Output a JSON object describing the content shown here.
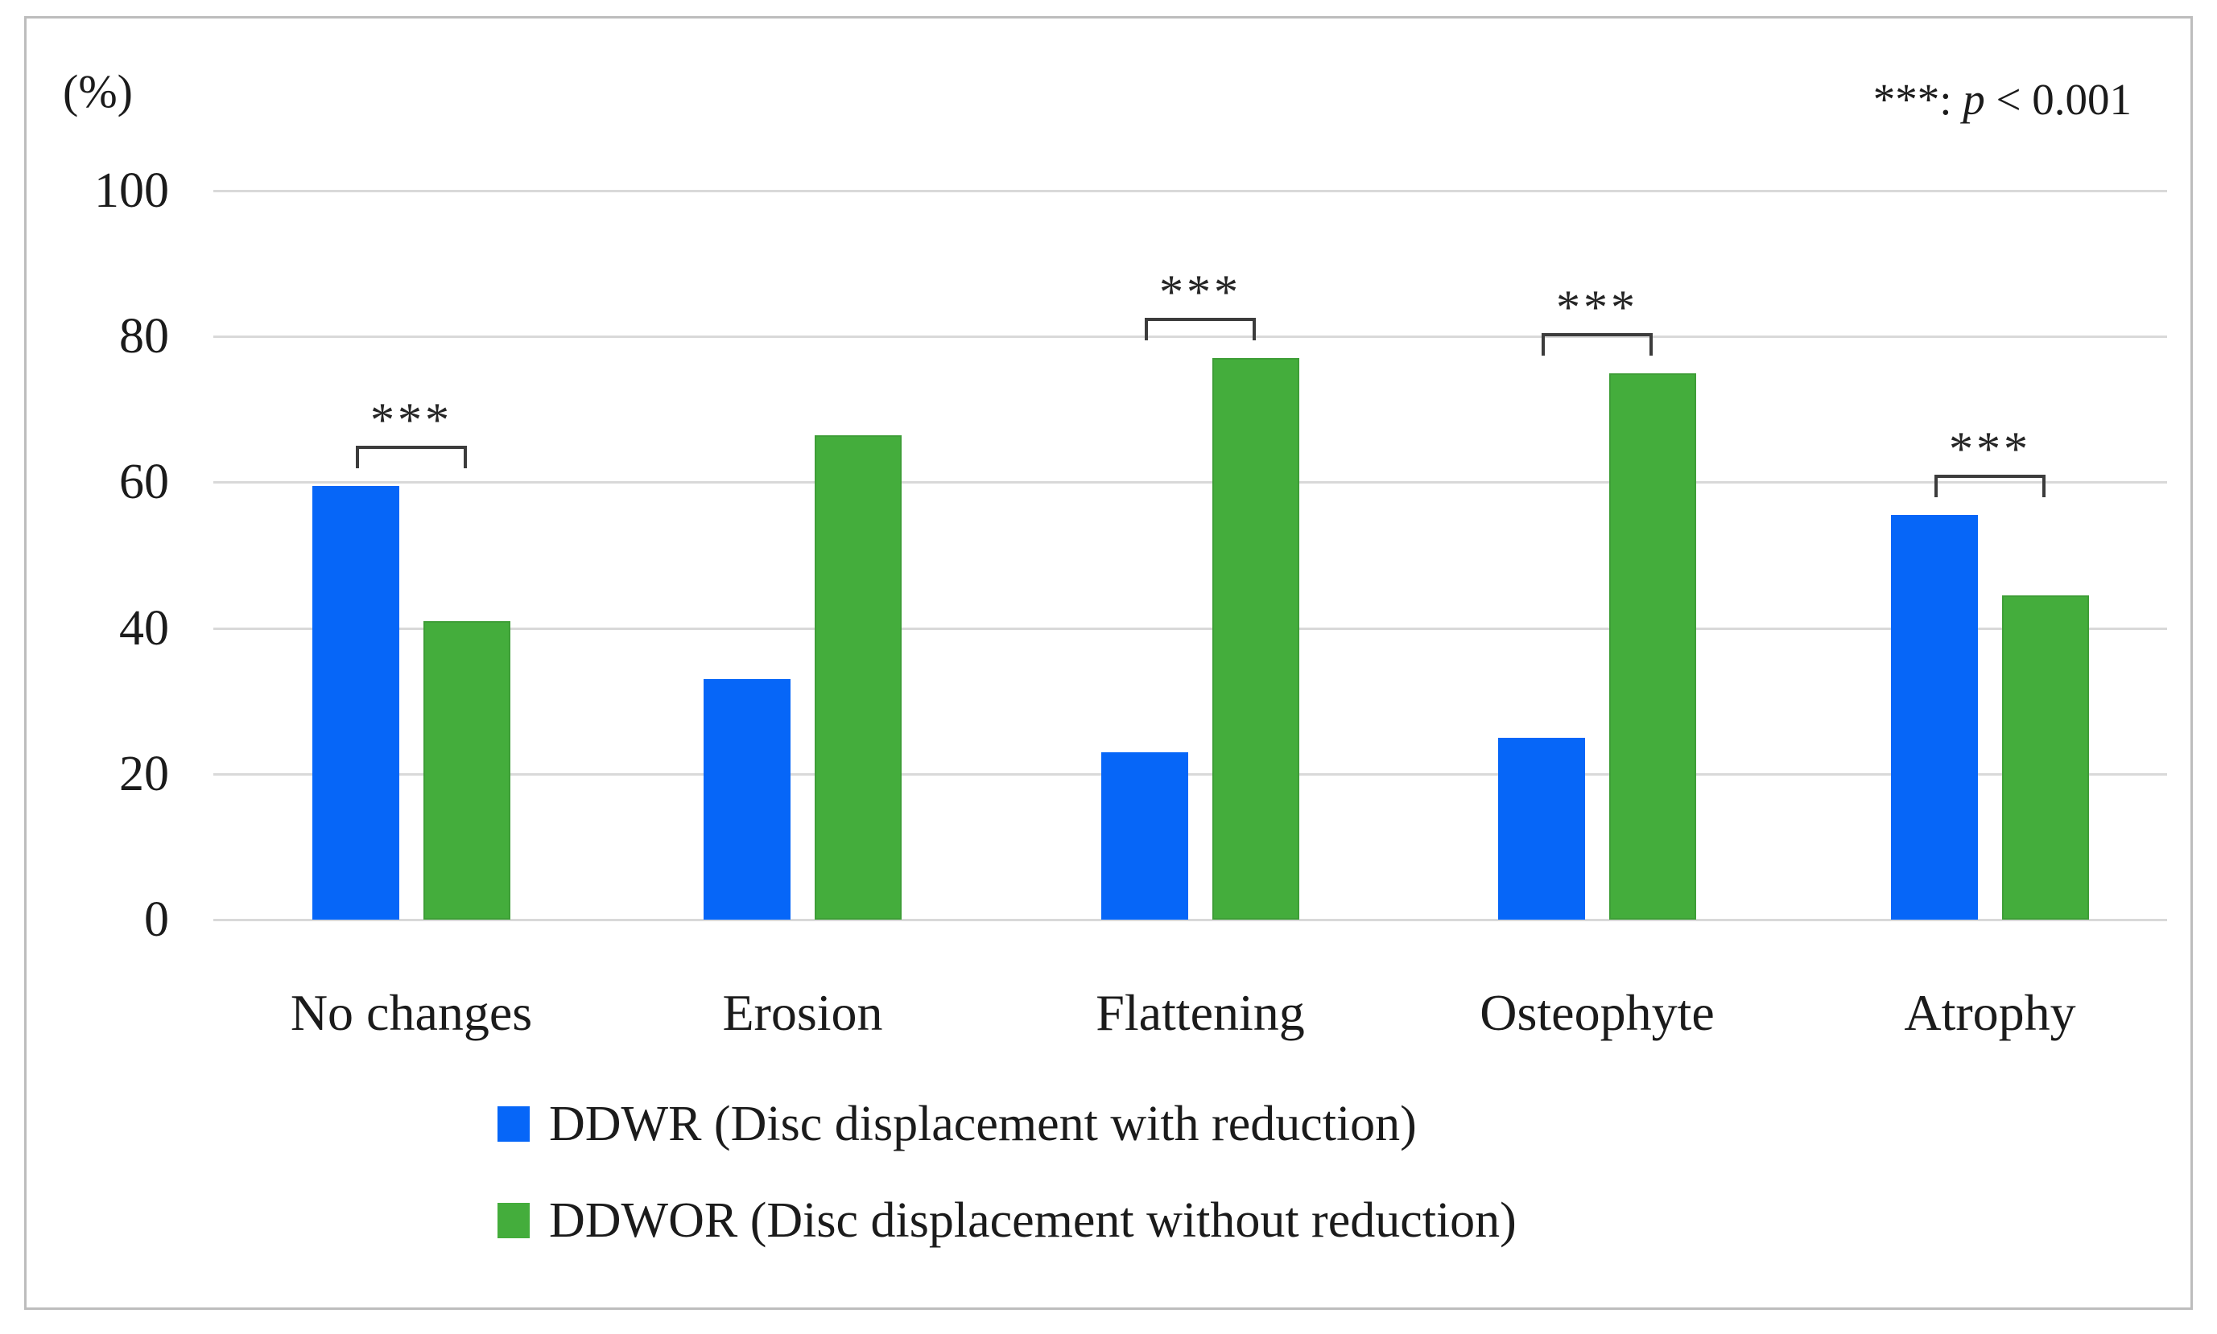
{
  "chart_data": {
    "type": "bar",
    "title": "",
    "ylabel": "(%)",
    "ylim": [
      0,
      100
    ],
    "y_ticks": [
      100,
      80,
      60,
      40,
      20,
      0
    ],
    "grid": true,
    "legend_position": "bottom-left",
    "categories": [
      "No changes",
      "Erosion",
      "Flattening",
      "Osteophyte",
      "Atrophy"
    ],
    "series": [
      {
        "name": "DDWR (Disc displacement with reduction)",
        "color": "#0666F8",
        "border_color": "#0666F8",
        "values": [
          59.5,
          33,
          23,
          25,
          55.5
        ]
      },
      {
        "name": "DDWOR (Disc displacement without reduction)",
        "color": "#44AD3C",
        "border_color": "#3E9E37",
        "values": [
          41,
          66.5,
          77,
          75,
          44.5
        ]
      }
    ],
    "significance_brackets": [
      {
        "category": "No changes",
        "label": "***"
      },
      {
        "category": "Flattening",
        "label": "***"
      },
      {
        "category": "Osteophyte",
        "label": "***"
      },
      {
        "category": "Atrophy",
        "label": "***"
      }
    ],
    "p_note": {
      "prefix": "***: ",
      "italic": "p",
      "suffix": " < 0.001"
    }
  }
}
